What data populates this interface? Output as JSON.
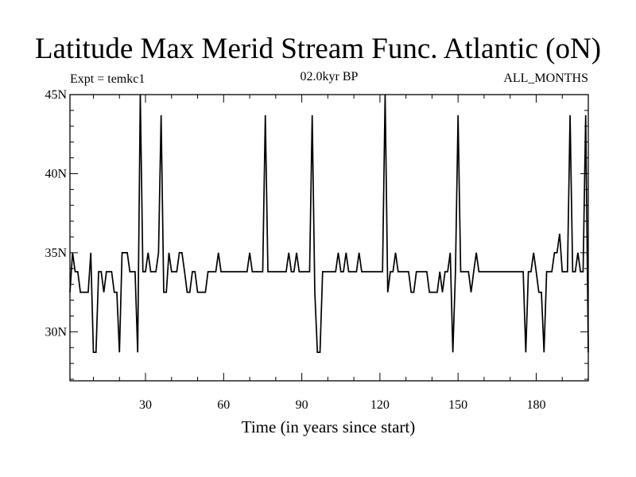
{
  "header": {
    "title": "Latitude Max Merid Stream Func. Atlantic (oN)",
    "experiment": "Expt = temkc1",
    "period": "02.0kyr BP",
    "months": "ALL_MONTHS"
  },
  "chart_data": {
    "type": "line",
    "title": "Latitude Max Merid Stream Func. Atlantic (oN)",
    "xlabel": "Time (in years since start)",
    "ylabel": "",
    "xlim": [
      1,
      200
    ],
    "ylim": [
      26.9,
      45
    ],
    "grid": false,
    "legend": "none",
    "line_color": "#000000",
    "x_ticks": [
      30,
      60,
      90,
      120,
      150,
      180
    ],
    "x_tick_labels": [
      "30",
      "60",
      "90",
      "120",
      "150",
      "180"
    ],
    "y_ticks": [
      30,
      35,
      40,
      45
    ],
    "y_tick_labels": [
      "30N",
      "35N",
      "40N",
      "45N"
    ],
    "series": [
      {
        "x": [
          1,
          2,
          3,
          4,
          5,
          6,
          7,
          8,
          9,
          10,
          11,
          12,
          13,
          14,
          15,
          16,
          17,
          18,
          19,
          20,
          21,
          22,
          23,
          24,
          25,
          26,
          27,
          28,
          29,
          30,
          31,
          32,
          33,
          34,
          35,
          36,
          37,
          38,
          39,
          40,
          41,
          42,
          43,
          44,
          45,
          46,
          47,
          48,
          49,
          50,
          51,
          52,
          53,
          54,
          55,
          56,
          57,
          58,
          59,
          60,
          61,
          62,
          63,
          64,
          65,
          66,
          67,
          68,
          69,
          70,
          71,
          72,
          73,
          74,
          75,
          76,
          77,
          78,
          79,
          80,
          81,
          82,
          83,
          84,
          85,
          86,
          87,
          88,
          89,
          90,
          91,
          92,
          93,
          94,
          95,
          96,
          97,
          98,
          99,
          100,
          101,
          102,
          103,
          104,
          105,
          106,
          107,
          108,
          109,
          110,
          111,
          112,
          113,
          114,
          115,
          116,
          117,
          118,
          119,
          120,
          121,
          122,
          123,
          124,
          125,
          126,
          127,
          128,
          129,
          130,
          131,
          132,
          133,
          134,
          135,
          136,
          137,
          138,
          139,
          140,
          141,
          142,
          143,
          144,
          145,
          146,
          147,
          148,
          149,
          150,
          151,
          152,
          153,
          154,
          155,
          156,
          157,
          158,
          159,
          160,
          161,
          162,
          163,
          164,
          165,
          166,
          167,
          168,
          169,
          170,
          171,
          172,
          173,
          174,
          175,
          176,
          177,
          178,
          179,
          180,
          181,
          182,
          183,
          184,
          185,
          186,
          187,
          188,
          189,
          190,
          191,
          192,
          193,
          194,
          195,
          196,
          197,
          198,
          199,
          200
        ],
        "values": [
          32.5,
          35,
          33.8,
          33.8,
          32.5,
          32.5,
          32.5,
          32.5,
          35,
          28.7,
          28.7,
          33.8,
          33.8,
          32.5,
          33.8,
          33.8,
          33.8,
          32.5,
          32.5,
          28.7,
          35,
          35,
          35,
          33.8,
          33.8,
          33.8,
          28.7,
          45,
          33.8,
          33.8,
          35,
          33.8,
          33.8,
          33.8,
          35,
          43.7,
          32.5,
          32.5,
          35,
          33.8,
          33.8,
          33.8,
          35,
          35,
          33.8,
          32.5,
          32.5,
          33.8,
          33.8,
          32.5,
          32.5,
          32.5,
          32.5,
          33.8,
          33.8,
          33.8,
          33.8,
          35,
          33.8,
          33.8,
          33.8,
          33.8,
          33.8,
          33.8,
          33.8,
          33.8,
          33.8,
          33.8,
          33.8,
          35,
          33.8,
          33.8,
          33.8,
          33.8,
          33.8,
          43.7,
          33.8,
          33.8,
          33.8,
          33.8,
          33.8,
          33.8,
          33.8,
          33.8,
          35,
          33.8,
          33.8,
          35,
          33.8,
          33.8,
          33.8,
          33.8,
          33.8,
          43.7,
          32.5,
          28.7,
          28.7,
          33.8,
          33.8,
          33.8,
          33.8,
          33.8,
          33.8,
          35,
          33.8,
          33.8,
          35,
          33.8,
          33.8,
          33.8,
          33.8,
          35,
          33.8,
          33.8,
          33.8,
          33.8,
          33.8,
          33.8,
          33.8,
          33.8,
          33.8,
          45,
          32.5,
          33.8,
          33.8,
          35,
          33.8,
          33.8,
          33.8,
          33.8,
          33.8,
          32.5,
          32.5,
          33.8,
          33.8,
          33.8,
          33.8,
          33.8,
          32.5,
          32.5,
          32.5,
          32.5,
          33.8,
          32.5,
          33.8,
          33.8,
          35,
          28.7,
          33.8,
          43.7,
          33.8,
          33.8,
          33.8,
          33.8,
          32.5,
          33.8,
          35,
          33.8,
          33.8,
          33.8,
          33.8,
          33.8,
          33.8,
          33.8,
          33.8,
          33.8,
          33.8,
          33.8,
          33.8,
          33.8,
          33.8,
          33.8,
          33.8,
          33.8,
          33.8,
          28.7,
          33.8,
          33.8,
          35,
          33.8,
          32.5,
          32.5,
          28.7,
          33.8,
          33.8,
          33.8,
          35,
          35,
          36.2,
          33.8,
          33.8,
          33.8,
          43.7,
          33.8,
          33.8,
          35,
          33.8,
          33.8,
          43.7,
          28.7
        ]
      }
    ]
  }
}
